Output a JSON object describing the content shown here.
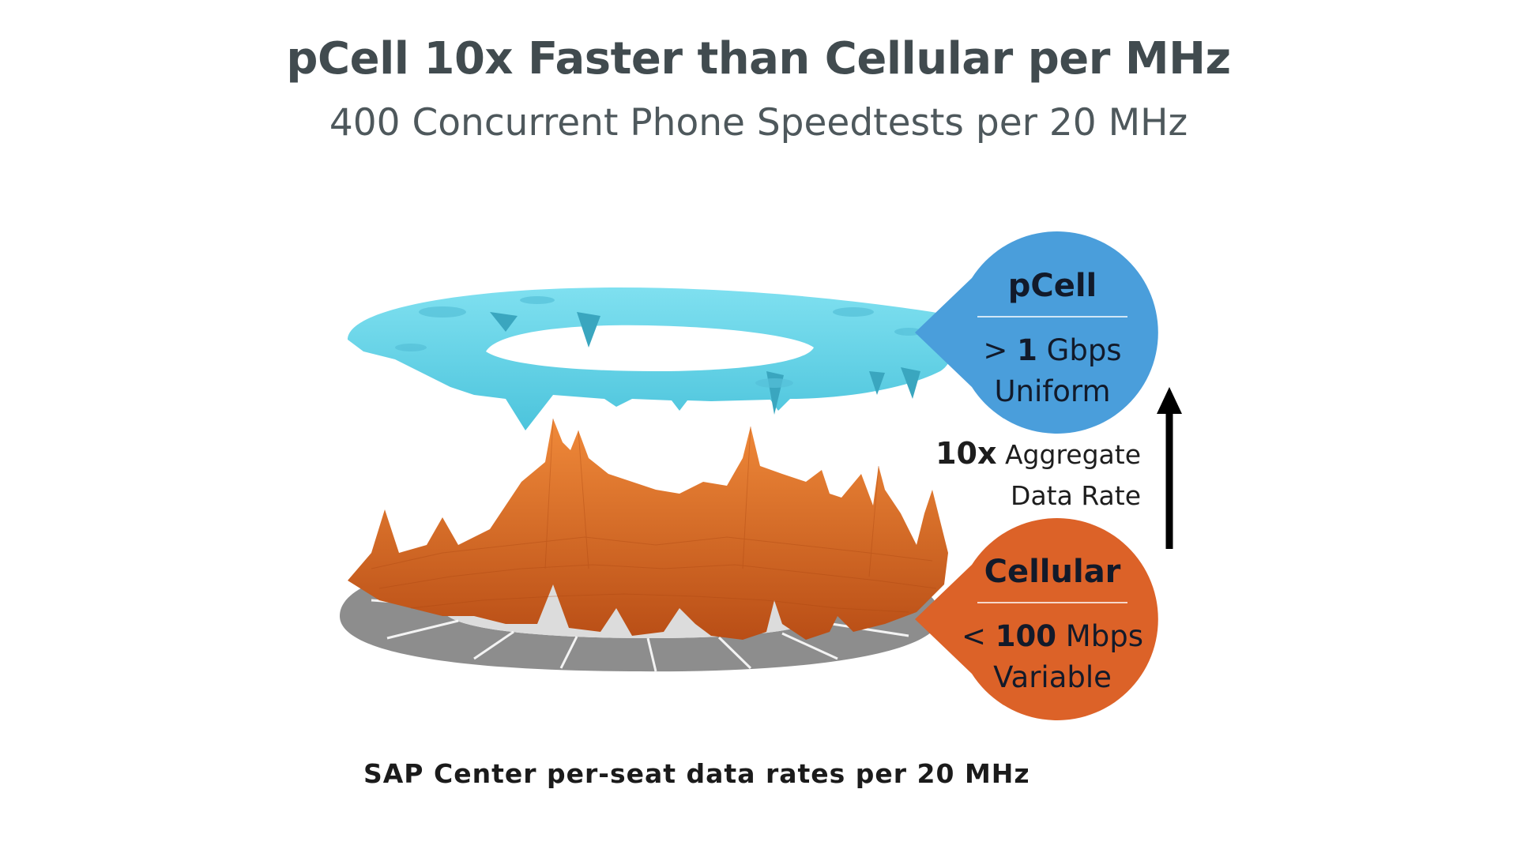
{
  "title": "pCell 10x Faster than Cellular per MHz",
  "subtitle": "400 Concurrent Phone Speedtests per 20 MHz",
  "caption": "SAP Center per-seat data rates per 20 MHz",
  "colors": {
    "pcell": "#4a9edb",
    "pcell_surface": "#62d3e6",
    "cellular": "#dc6228",
    "cellular_surface": "#e2691e",
    "seating": "#8e8e8e",
    "arrow": "#000000"
  },
  "pcell_callout": {
    "title": "pCell",
    "rate_prefix": "> ",
    "rate_value": "1",
    "rate_unit": " Gbps",
    "quality": "Uniform"
  },
  "cellular_callout": {
    "title": "Cellular",
    "rate_prefix": "< ",
    "rate_value": "100",
    "rate_unit": " Mbps",
    "quality": "Variable"
  },
  "aggregate": {
    "multiplier": "10x",
    "line1": " Aggregate",
    "line2": "Data Rate"
  }
}
